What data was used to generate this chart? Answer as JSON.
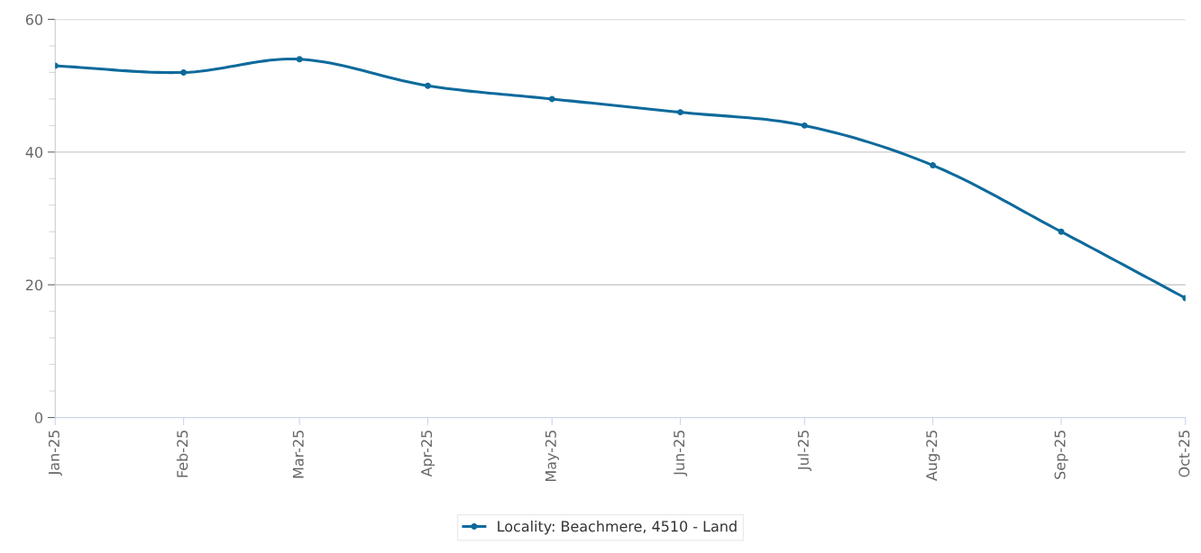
{
  "chart_data": {
    "type": "line",
    "x": [
      "2025-01",
      "2025-02",
      "2025-03",
      "2025-04",
      "2025-05",
      "2025-06",
      "2025-07",
      "2025-08",
      "2025-09",
      "2025-10"
    ],
    "series": [
      {
        "name": "Locality: Beachmere, 4510 - Land",
        "color": "#0e6a9c",
        "values": [
          53,
          52,
          54,
          50,
          48,
          46,
          44,
          38,
          28,
          18
        ]
      }
    ],
    "xlim": [
      "2025-01",
      "2025-10"
    ],
    "xticks": [
      {
        "value": "2025-01",
        "label": "Jan-25"
      },
      {
        "value": "2025-02",
        "label": "Feb-25"
      },
      {
        "value": "2025-03",
        "label": "Mar-25"
      },
      {
        "value": "2025-04",
        "label": "Apr-25"
      },
      {
        "value": "2025-05",
        "label": "May-25"
      },
      {
        "value": "2025-06",
        "label": "Jun-25"
      },
      {
        "value": "2025-07",
        "label": "Jul-25"
      },
      {
        "value": "2025-08",
        "label": "Aug-25"
      },
      {
        "value": "2025-09",
        "label": "Sep-25"
      },
      {
        "value": "2025-10",
        "label": "Oct-25"
      }
    ],
    "ylim": [
      0,
      60
    ],
    "yticks": [
      0,
      20,
      40,
      60
    ],
    "grid": "y",
    "legend": "bottom",
    "marker": "circle",
    "line_style": "solid"
  }
}
